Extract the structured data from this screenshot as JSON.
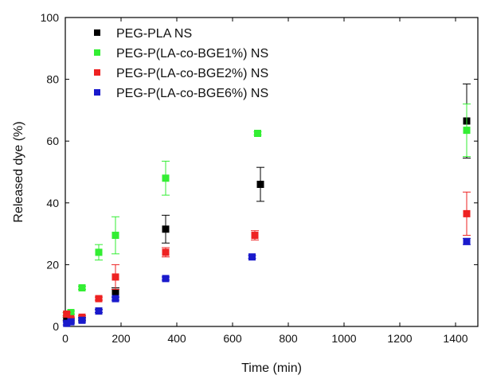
{
  "chart_data": {
    "type": "scatter",
    "title": "",
    "xlabel": "Time (min)",
    "ylabel": "Released dye (%)",
    "xlim": [
      0,
      1480
    ],
    "ylim": [
      0,
      100
    ],
    "xticks": [
      0,
      200,
      400,
      600,
      800,
      1000,
      1200,
      1400
    ],
    "yticks": [
      0,
      20,
      40,
      60,
      80,
      100
    ],
    "grid": false,
    "legend_position": "top-left",
    "error_bars": true,
    "series": [
      {
        "name": "PEG-PLA NS",
        "color": "#000000",
        "points": [
          {
            "x": 5,
            "y": 2.5,
            "err": 0.5
          },
          {
            "x": 20,
            "y": 2,
            "err": 0.5
          },
          {
            "x": 60,
            "y": 2.5,
            "err": 0.5
          },
          {
            "x": 120,
            "y": 5,
            "err": 0.5
          },
          {
            "x": 180,
            "y": 11,
            "err": 1.5
          },
          {
            "x": 360,
            "y": 31.5,
            "err": 4.5
          },
          {
            "x": 700,
            "y": 46,
            "err": 5.5
          },
          {
            "x": 1440,
            "y": 66.5,
            "err": 12
          }
        ]
      },
      {
        "name": "PEG-P(LA-co-BGE1%) NS",
        "color": "#33ee33",
        "points": [
          {
            "x": 5,
            "y": 4,
            "err": 0.5
          },
          {
            "x": 20,
            "y": 4.5,
            "err": 0.5
          },
          {
            "x": 60,
            "y": 12.5,
            "err": 0.5
          },
          {
            "x": 120,
            "y": 24,
            "err": 2.5
          },
          {
            "x": 180,
            "y": 29.5,
            "err": 6
          },
          {
            "x": 360,
            "y": 48,
            "err": 5.5
          },
          {
            "x": 690,
            "y": 62.5,
            "err": 0.5
          },
          {
            "x": 1440,
            "y": 63.5,
            "err": 8.5
          }
        ]
      },
      {
        "name": "PEG-P(LA-co-BGE2%) NS",
        "color": "#ee2222",
        "points": [
          {
            "x": 5,
            "y": 4,
            "err": 0.5
          },
          {
            "x": 20,
            "y": 2.5,
            "err": 0.5
          },
          {
            "x": 60,
            "y": 3,
            "err": 0.5
          },
          {
            "x": 120,
            "y": 9,
            "err": 0.5
          },
          {
            "x": 180,
            "y": 16,
            "err": 4
          },
          {
            "x": 360,
            "y": 24,
            "err": 1.5
          },
          {
            "x": 680,
            "y": 29.5,
            "err": 1.5
          },
          {
            "x": 1440,
            "y": 36.5,
            "err": 7
          }
        ]
      },
      {
        "name": "PEG-P(LA-co-BGE6%) NS",
        "color": "#1a1acc",
        "points": [
          {
            "x": 5,
            "y": 1,
            "err": 0.5
          },
          {
            "x": 20,
            "y": 1.5,
            "err": 0.5
          },
          {
            "x": 60,
            "y": 2,
            "err": 0.5
          },
          {
            "x": 120,
            "y": 5,
            "err": 0.5
          },
          {
            "x": 180,
            "y": 9,
            "err": 0.5
          },
          {
            "x": 360,
            "y": 15.5,
            "err": 0.5
          },
          {
            "x": 670,
            "y": 22.5,
            "err": 0.5
          },
          {
            "x": 1440,
            "y": 27.5,
            "err": 1
          }
        ]
      }
    ]
  }
}
